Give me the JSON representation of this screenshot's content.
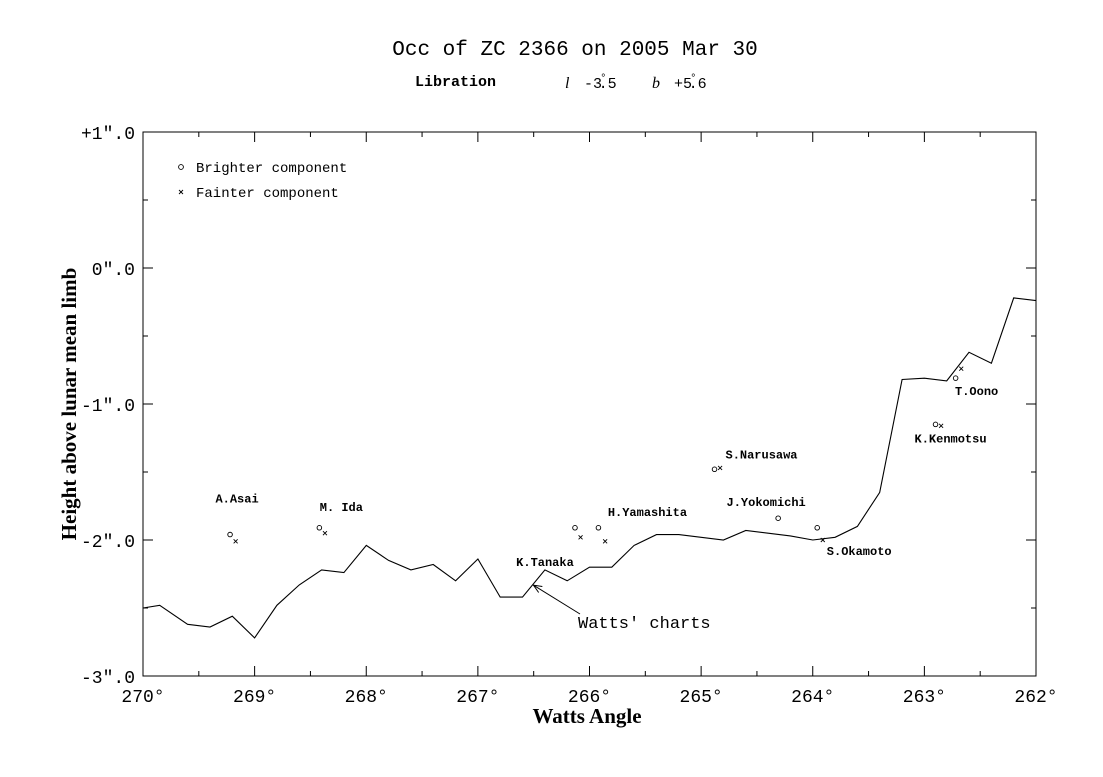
{
  "chart_data": {
    "type": "line",
    "title": "Occ of ZC 2366 on 2005 Mar 30",
    "subtitle": {
      "label": "Libration",
      "l_symbol": "l",
      "l_value": "-3.5",
      "b_symbol": "b",
      "b_value": "+5.6",
      "unit_mark": "°"
    },
    "xlabel": "Watts Angle",
    "ylabel": "Height above lunar mean limb",
    "xlim": [
      270,
      262
    ],
    "ylim": [
      -3,
      1
    ],
    "x_ticks": [
      270,
      269,
      268,
      267,
      266,
      265,
      264,
      263,
      262
    ],
    "y_ticks": [
      1,
      0,
      -1,
      -2,
      -3
    ],
    "x_tick_labels": [
      "270°",
      "269°",
      "268°",
      "267°",
      "266°",
      "265°",
      "264°",
      "263°",
      "262°"
    ],
    "y_tick_labels": [
      "+1\".0",
      "0\".0",
      "-1\".0",
      "-2\".0",
      "-3\".0"
    ],
    "legend": {
      "position": "top-left",
      "entries": [
        {
          "marker": "o",
          "label": "Brighter component"
        },
        {
          "marker": "x",
          "label": "Fainter component"
        }
      ]
    },
    "series": [
      {
        "name": "Watts' charts",
        "x": [
          270.0,
          269.85,
          269.6,
          269.4,
          269.2,
          269.0,
          268.8,
          268.6,
          268.4,
          268.2,
          268.0,
          267.8,
          267.6,
          267.4,
          267.2,
          267.0,
          266.8,
          266.6,
          266.4,
          266.2,
          266.0,
          265.8,
          265.6,
          265.4,
          265.2,
          265.0,
          264.8,
          264.6,
          264.4,
          264.2,
          264.0,
          263.8,
          263.6,
          263.4,
          263.2,
          263.0,
          262.8,
          262.6,
          262.4,
          262.2,
          262.0
        ],
        "y": [
          -2.5,
          -2.48,
          -2.62,
          -2.64,
          -2.56,
          -2.72,
          -2.48,
          -2.33,
          -2.22,
          -2.24,
          -2.04,
          -2.15,
          -2.22,
          -2.18,
          -2.3,
          -2.14,
          -2.42,
          -2.42,
          -2.22,
          -2.3,
          -2.2,
          -2.2,
          -2.04,
          -1.96,
          -1.96,
          -1.98,
          -2.0,
          -1.93,
          -1.95,
          -1.97,
          -2.0,
          -1.98,
          -1.9,
          -1.65,
          -0.82,
          -0.81,
          -0.83,
          -0.62,
          -0.7,
          -0.22,
          -0.24
        ]
      }
    ],
    "observations": [
      {
        "observer": "A.Asai",
        "bright": {
          "x": 269.22,
          "y": -1.96
        },
        "faint": {
          "x": 269.17,
          "y": -2.01
        }
      },
      {
        "observer": "M. Ida",
        "bright": {
          "x": 268.42,
          "y": -1.91
        },
        "faint": {
          "x": 268.37,
          "y": -1.95
        }
      },
      {
        "observer": "K.Tanaka",
        "bright": {
          "x": 266.13,
          "y": -1.91
        },
        "faint": {
          "x": 266.08,
          "y": -1.98
        }
      },
      {
        "observer": "H.Yamashita",
        "bright": {
          "x": 265.92,
          "y": -1.91
        },
        "faint": {
          "x": 265.86,
          "y": -2.01
        }
      },
      {
        "observer": "S.Narusawa",
        "bright": {
          "x": 264.88,
          "y": -1.48
        },
        "faint": {
          "x": 264.83,
          "y": -1.47
        }
      },
      {
        "observer": "J.Yokomichi",
        "bright": {
          "x": 264.31,
          "y": -1.84
        },
        "faint": null
      },
      {
        "observer": "S.Okamoto",
        "bright": {
          "x": 263.96,
          "y": -1.91
        },
        "faint": {
          "x": 263.91,
          "y": -2.0
        }
      },
      {
        "observer": "K.Kenmotsu",
        "bright": {
          "x": 262.9,
          "y": -1.15
        },
        "faint": {
          "x": 262.85,
          "y": -1.16
        }
      },
      {
        "observer": "T.Oono",
        "bright": {
          "x": 262.72,
          "y": -0.81
        },
        "faint": {
          "x": 262.67,
          "y": -0.74
        }
      }
    ],
    "annotations": [
      {
        "text": "Watts' charts",
        "arrow_to": {
          "x": 266.52,
          "y": -2.31
        }
      }
    ],
    "grid": false
  }
}
